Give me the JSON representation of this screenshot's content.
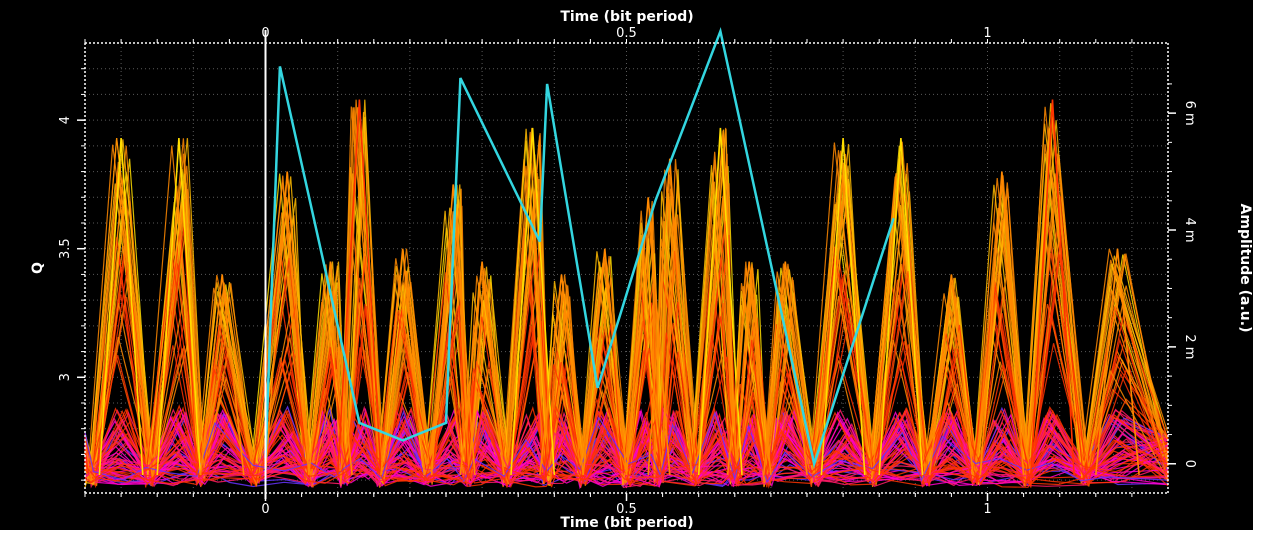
{
  "colors": {
    "background": "#000000",
    "axis": "#ffffff",
    "grid": "#5a5a5a",
    "page_background": "#ffffff",
    "trace_palette": [
      "#ff00cc",
      "#ff1a66",
      "#ff3300",
      "#ff5500",
      "#ff8800",
      "#ffbb00",
      "#ffdd00",
      "#6633ff"
    ],
    "overlay_line": "#33d6e0"
  },
  "chart_data": {
    "type": "line",
    "xlabel_bottom": "Time (bit period)",
    "xlabel_top": "Time (bit period)",
    "ylabel_left": "Q",
    "ylabel_right": "Amplitude (a.u.)",
    "x_range": [
      -0.25,
      1.25
    ],
    "x_ticks": [
      0,
      0.5,
      1
    ],
    "x_tick_labels": [
      "0",
      "0.5",
      "1"
    ],
    "x_top_tick_labels": [
      "0",
      "0.5",
      "1"
    ],
    "y_left_range": [
      2.55,
      4.3
    ],
    "y_left_ticks": [
      3,
      3.5,
      4
    ],
    "y_left_tick_labels": [
      "3",
      "3.5",
      "4"
    ],
    "y_right_range": [
      -0.0005,
      0.0072
    ],
    "y_right_ticks": [
      0,
      0.002,
      0.004,
      0.006
    ],
    "y_right_tick_labels": [
      "0",
      "2 m",
      "4 m",
      "6 m"
    ],
    "grid": true,
    "eye_peaks": {
      "x": [
        -0.2,
        -0.12,
        -0.06,
        0.03,
        0.09,
        0.13,
        0.19,
        0.26,
        0.3,
        0.37,
        0.41,
        0.47,
        0.53,
        0.56,
        0.63,
        0.67,
        0.72,
        0.8,
        0.88,
        0.95,
        1.02,
        1.09,
        1.18
      ],
      "y": [
        3.93,
        3.93,
        3.4,
        3.8,
        3.45,
        4.08,
        3.5,
        3.75,
        3.45,
        3.97,
        3.4,
        3.5,
        3.7,
        3.85,
        3.97,
        3.45,
        3.45,
        3.93,
        3.93,
        3.4,
        3.8,
        4.08,
        3.5
      ]
    },
    "overlay_series": {
      "x": [
        0,
        0.02,
        0.13,
        0.19,
        0.25,
        0.27,
        0.38,
        0.39,
        0.46,
        0.54,
        0.63,
        0.76,
        0.87
      ],
      "y": [
        0.0001,
        0.0068,
        0.0007,
        0.0004,
        0.0007,
        0.0066,
        0.0038,
        0.0065,
        0.0013,
        0.0045,
        0.0074,
        0.0,
        0.0042
      ]
    }
  }
}
